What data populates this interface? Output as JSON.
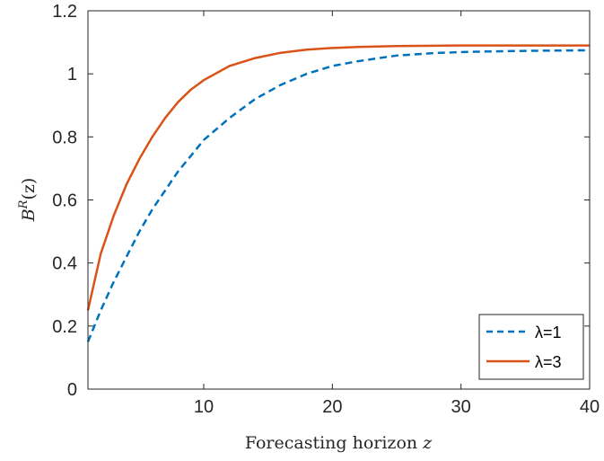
{
  "chart_data": {
    "type": "line",
    "xlabel": "Forecasting horizon z",
    "ylabel": "B^R(z)",
    "ylabel_base": "B",
    "ylabel_sup": "R",
    "ylabel_arg": "(z)",
    "xlim": [
      1,
      40
    ],
    "ylim": [
      0,
      1.2
    ],
    "xticks": [
      10,
      20,
      30,
      40
    ],
    "xtick_labels": [
      "10",
      "20",
      "30",
      "40"
    ],
    "yticks": [
      0,
      0.2,
      0.4,
      0.6,
      0.8,
      1,
      1.2
    ],
    "ytick_labels": [
      "0",
      "0.2",
      "0.4",
      "0.6",
      "0.8",
      "1",
      "1.2"
    ],
    "grid": false,
    "legend_position": "bottom-right",
    "series": [
      {
        "name": "λ=1",
        "color": "#0072BD",
        "style": "dashed",
        "x": [
          1,
          2,
          3,
          4,
          5,
          6,
          7,
          8,
          9,
          10,
          12,
          14,
          16,
          18,
          20,
          22,
          25,
          28,
          30,
          32,
          35,
          38,
          40
        ],
        "y": [
          0.15,
          0.25,
          0.34,
          0.42,
          0.5,
          0.57,
          0.63,
          0.69,
          0.74,
          0.79,
          0.86,
          0.92,
          0.965,
          1.0,
          1.025,
          1.04,
          1.058,
          1.066,
          1.069,
          1.071,
          1.073,
          1.074,
          1.075
        ]
      },
      {
        "name": "λ=3",
        "color": "#D95319",
        "style": "solid",
        "x": [
          1,
          2,
          3,
          4,
          5,
          6,
          7,
          8,
          9,
          10,
          12,
          14,
          16,
          18,
          20,
          22,
          25,
          28,
          30,
          35,
          40
        ],
        "y": [
          0.25,
          0.43,
          0.55,
          0.65,
          0.73,
          0.8,
          0.86,
          0.91,
          0.95,
          0.98,
          1.025,
          1.05,
          1.067,
          1.077,
          1.082,
          1.085,
          1.088,
          1.089,
          1.09,
          1.09,
          1.09
        ]
      }
    ]
  }
}
